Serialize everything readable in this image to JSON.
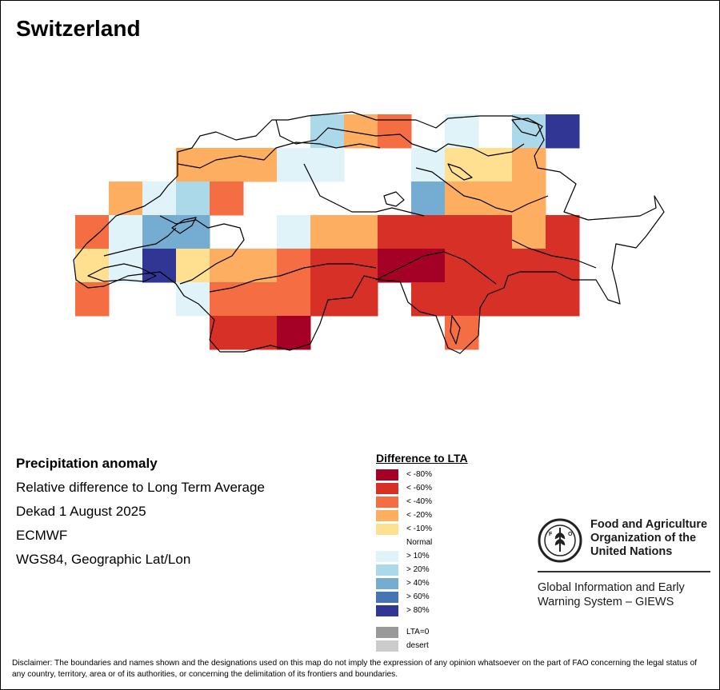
{
  "map": {
    "title": "Switzerland",
    "info": {
      "line1": "Precipitation anomaly",
      "line2": "Relative difference to Long Term Average",
      "line3": "Dekad 1 August 2025",
      "line4": "ECMWF",
      "line5": "WGS84, Geographic Lat/Lon"
    },
    "legend": {
      "title": "Difference to LTA",
      "items": [
        {
          "label": "< -80%",
          "color": "#a50026",
          "key": "m80"
        },
        {
          "label": "< -60%",
          "color": "#d73027",
          "key": "m60"
        },
        {
          "label": "< -40%",
          "color": "#f46d43",
          "key": "m40"
        },
        {
          "label": "< -20%",
          "color": "#fdae61",
          "key": "m20"
        },
        {
          "label": "< -10%",
          "color": "#fee090",
          "key": "m10"
        },
        {
          "label": "Normal",
          "color": "#ffffff",
          "key": "n"
        },
        {
          "label": "> 10%",
          "color": "#e0f3f8",
          "key": "p10"
        },
        {
          "label": "> 20%",
          "color": "#abd9e9",
          "key": "p20"
        },
        {
          "label": "> 40%",
          "color": "#74add1",
          "key": "p40"
        },
        {
          "label": "> 60%",
          "color": "#4575b4",
          "key": "p60"
        },
        {
          "label": "> 80%",
          "color": "#313695",
          "key": "p80"
        }
      ],
      "extra": [
        {
          "label": "LTA=0",
          "color": "#999999"
        },
        {
          "label": "desert",
          "color": "#cccccc"
        }
      ]
    },
    "grid_rows": [
      [
        "",
        "",
        "",
        "",
        "",
        "",
        "",
        "p20",
        "m20",
        "m40",
        "",
        "p10",
        "",
        "p20",
        "p80"
      ],
      [
        "",
        "",
        "",
        "m20",
        "m20",
        "m20",
        "p10",
        "p10",
        "n",
        "",
        "p10",
        "m10",
        "m10",
        "m20",
        "n"
      ],
      [
        "",
        "m20",
        "p10",
        "p20",
        "m40",
        "n",
        "n",
        "n",
        "n",
        "",
        "p40",
        "m20",
        "m20",
        "m20",
        ""
      ],
      [
        "m40",
        "p10",
        "p40",
        "p40",
        "",
        "",
        "p10",
        "m20",
        "m20",
        "m60",
        "m60",
        "m60",
        "m60",
        "m20",
        "m60"
      ],
      [
        "m10",
        "p10",
        "p80",
        "m10",
        "m20",
        "m20",
        "m40",
        "m60",
        "m60",
        "m80",
        "m80",
        "m60",
        "m60",
        "m60",
        "m60"
      ],
      [
        "m40",
        "",
        "",
        "p10",
        "m40",
        "m40",
        "m40",
        "m60",
        "m60",
        "",
        "m60",
        "m60",
        "m60",
        "m60",
        "m60"
      ],
      [
        "",
        "",
        "",
        "",
        "m60",
        "m60",
        "m80",
        "",
        "",
        "",
        "",
        "m40",
        "",
        "",
        ""
      ]
    ],
    "grid_notes": "Columns west to east, rows north to south; keys reference legend items."
  },
  "fao": {
    "name_line1": "Food and Agriculture",
    "name_line2": "Organization of the",
    "name_line3": "United Nations",
    "giews_line1": "Global Information and Early",
    "giews_line2": "Warning System – GIEWS"
  },
  "disclaimer": "Disclaimer: The boundaries and names shown and the designations used on this map do not imply the expression of any opinion whatsoever on the part of FAO concerning the legal status of any country, territory, area or of its authorities, or concerning the delimitation of its frontiers and boundaries."
}
